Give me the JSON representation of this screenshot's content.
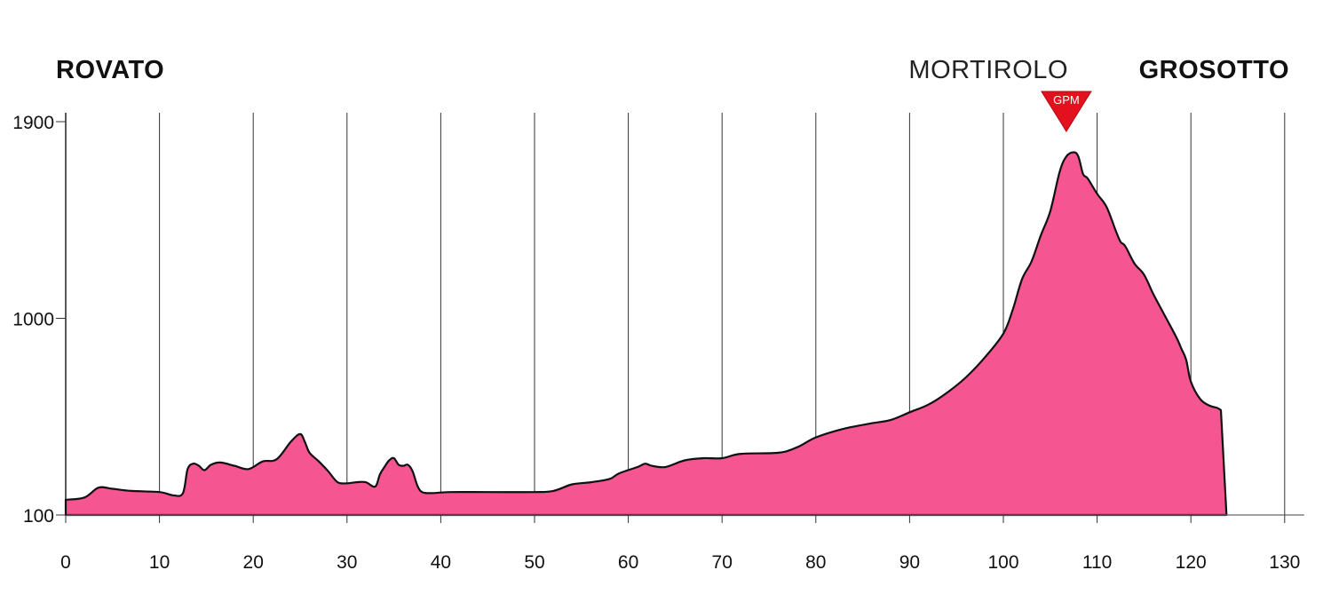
{
  "chart_data": {
    "type": "area",
    "xlim": [
      0,
      130
    ],
    "ylim": [
      100,
      1900
    ],
    "x_ticks": [
      0,
      10,
      20,
      30,
      40,
      50,
      60,
      70,
      80,
      90,
      100,
      110,
      120,
      130
    ],
    "y_ticks": [
      100,
      1000,
      1900
    ],
    "grid": "vertical",
    "start": {
      "name": "ROVATO",
      "km": 0
    },
    "finish": {
      "name": "GROSOTTO",
      "km": 123.8
    },
    "climb": {
      "name": "MORTIROLO",
      "km": 107,
      "badge": "GPM"
    },
    "colors": {
      "fill": "#f55591",
      "stroke": "#111111",
      "grid": "#333333",
      "gpm": "#e3101e"
    },
    "x": [
      0,
      2,
      3.5,
      5,
      7,
      10,
      11.5,
      12.5,
      13,
      13.6,
      14.2,
      14.8,
      15.5,
      16.5,
      18,
      19.5,
      21,
      22.5,
      24,
      25,
      25.5,
      26,
      27,
      28,
      29,
      30,
      31,
      32,
      33,
      33.5,
      34,
      34.5,
      35,
      35.5,
      36,
      36.5,
      37,
      37.5,
      38,
      39,
      41,
      45,
      50,
      52,
      54,
      56,
      58,
      59,
      61,
      61.8,
      62.5,
      64,
      66,
      68,
      70,
      72,
      76,
      78,
      80,
      83,
      86,
      88,
      90,
      92,
      94,
      96,
      98,
      100,
      101,
      102,
      103,
      104,
      105,
      106,
      106.7,
      107.5,
      108,
      108.5,
      109,
      110,
      111,
      112,
      112.5,
      113,
      114,
      115,
      116,
      117,
      118,
      118.6,
      119,
      119.5,
      120,
      121,
      122,
      122.8,
      123.2,
      123.8
    ],
    "y": [
      170,
      180,
      225,
      220,
      210,
      205,
      190,
      200,
      310,
      335,
      325,
      305,
      330,
      340,
      325,
      310,
      345,
      355,
      435,
      470,
      435,
      385,
      345,
      300,
      250,
      245,
      250,
      250,
      230,
      285,
      320,
      350,
      360,
      330,
      325,
      330,
      300,
      235,
      205,
      200,
      205,
      205,
      205,
      210,
      240,
      250,
      265,
      290,
      320,
      335,
      325,
      320,
      350,
      360,
      360,
      380,
      385,
      410,
      455,
      495,
      520,
      535,
      570,
      605,
      660,
      730,
      820,
      930,
      1040,
      1180,
      1260,
      1380,
      1490,
      1670,
      1740,
      1760,
      1740,
      1660,
      1640,
      1570,
      1510,
      1400,
      1350,
      1330,
      1250,
      1200,
      1110,
      1030,
      950,
      900,
      860,
      810,
      710,
      630,
      600,
      590,
      580,
      100
    ]
  }
}
